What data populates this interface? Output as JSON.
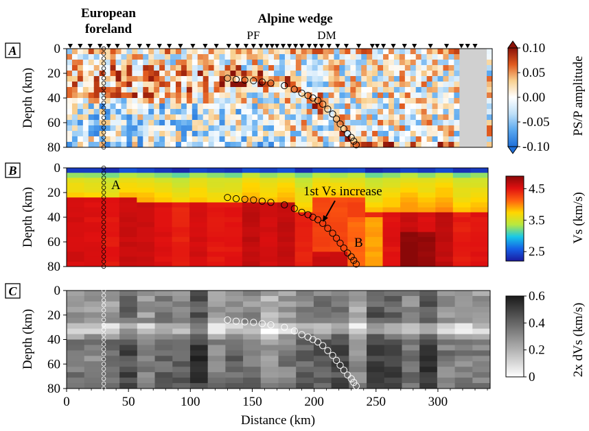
{
  "colors": {
    "ps_colormap": [
      "#1e6fd9",
      "#5aa8ef",
      "#bfe0f8",
      "#ffffff",
      "#f8d090",
      "#e05a1e",
      "#8a1208"
    ],
    "vs_colormap": [
      "#1a1aa0",
      "#1560e6",
      "#18c8e8",
      "#b8e840",
      "#ffd700",
      "#ff6010",
      "#e01010",
      "#8a0808"
    ],
    "dvs_colormap": [
      "#ffffff",
      "#1a1a1a"
    ],
    "no_data": "#d0d0d0",
    "markers_dark": "#000000",
    "markers_light": "#ffffff"
  },
  "chart_data": [
    {
      "panel_letter": "A",
      "type": "heatmap",
      "xlim": [
        0,
        340
      ],
      "ylim": [
        80,
        0
      ],
      "ylabel": "Depth (km)",
      "yticks": [
        "0",
        "20",
        "40",
        "60",
        "80"
      ],
      "colorbar_label": "PS/P amplitude",
      "colorbar_ticks": [
        "0.10",
        "0.05",
        "0.00",
        "-0.05",
        "-0.10"
      ],
      "colorbar_range": [
        -0.1,
        0.1
      ],
      "annotations": [
        {
          "text": "PF",
          "x": 145
        },
        {
          "text": "DM",
          "x": 208
        }
      ],
      "group_labels": [
        {
          "lines": [
            "European",
            "foreland"
          ],
          "x": 33
        },
        {
          "lines": [
            "Alpine wedge"
          ],
          "x": 190
        }
      ],
      "stations_km": [
        3,
        11,
        19,
        27,
        34,
        41,
        50,
        59,
        66,
        75,
        83,
        92,
        102,
        112,
        121,
        131,
        138,
        145,
        151,
        157,
        162,
        166,
        170,
        175,
        180,
        185,
        190,
        196,
        201,
        206,
        212,
        219,
        226,
        236,
        247,
        251,
        256,
        264,
        273,
        281,
        294,
        307,
        319,
        324,
        330
      ],
      "no_data_x_ranges": [
        [
          0,
          2
        ],
        [
          237,
          240
        ],
        [
          318,
          340
        ]
      ]
    },
    {
      "panel_letter": "B",
      "type": "heatmap",
      "xlim": [
        0,
        340
      ],
      "ylim": [
        80,
        0
      ],
      "ylabel": "Depth (km)",
      "yticks": [
        "0",
        "20",
        "40",
        "60",
        "80"
      ],
      "colorbar_label": "Vs (km/s)",
      "colorbar_ticks": [
        "4.5",
        "3.5",
        "2.5"
      ],
      "colorbar_range": [
        2.2,
        4.9
      ],
      "annotations": [
        {
          "text": "A",
          "x": 41,
          "y": 15
        },
        {
          "text": "1st Vs increase",
          "x": 240,
          "y": 21
        },
        {
          "text": "B",
          "x": 236,
          "y": 62
        }
      ]
    },
    {
      "panel_letter": "C",
      "type": "heatmap",
      "xlim": [
        0,
        340
      ],
      "ylim": [
        80,
        0
      ],
      "ylabel": "Depth (km)",
      "xlabel": "Distance (km)",
      "yticks": [
        "0",
        "20",
        "40",
        "60",
        "80"
      ],
      "xticks": [
        "0",
        "50",
        "100",
        "150",
        "200",
        "250",
        "300"
      ],
      "colorbar_label": "2x dVs (km/s)",
      "colorbar_ticks": [
        "0.6",
        "0.4",
        "0.2",
        "0"
      ],
      "colorbar_range": [
        0,
        0.6
      ]
    }
  ],
  "moho_profile": {
    "vertical_x": 30,
    "vertical_depths": [
      0,
      4,
      8,
      12,
      16,
      20,
      24,
      28,
      32,
      36,
      40,
      44,
      48,
      52,
      56,
      60,
      64,
      68,
      72,
      76,
      80
    ],
    "dipping_points": [
      [
        130,
        24
      ],
      [
        137,
        25
      ],
      [
        144,
        25.5
      ],
      [
        151,
        26
      ],
      [
        158,
        27
      ],
      [
        165,
        28
      ],
      [
        176,
        30
      ],
      [
        184,
        33
      ],
      [
        190,
        36
      ],
      [
        195,
        38
      ],
      [
        199,
        40
      ],
      [
        203,
        42
      ],
      [
        207,
        45
      ],
      [
        211,
        49
      ],
      [
        215,
        53
      ],
      [
        218,
        57
      ],
      [
        221,
        61
      ],
      [
        224,
        65
      ],
      [
        227,
        69
      ],
      [
        230,
        72
      ],
      [
        232,
        75
      ],
      [
        234,
        78
      ]
    ]
  }
}
